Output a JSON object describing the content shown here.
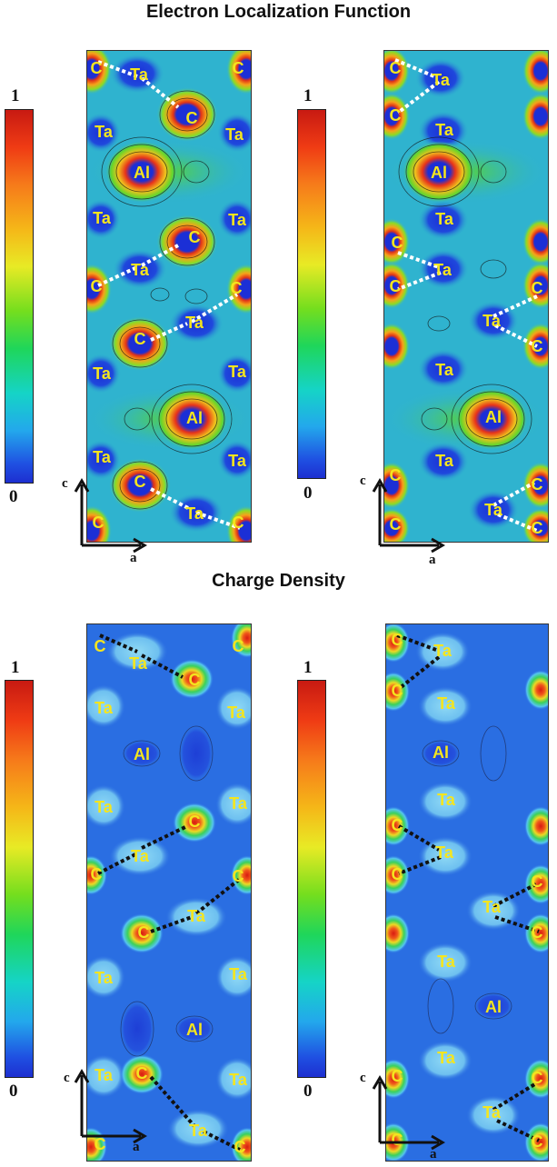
{
  "titles": {
    "elf": "Electron Localization Function",
    "charge": "Charge Density"
  },
  "colorbar": {
    "max": "1",
    "min": "0"
  },
  "axes": {
    "vertical": "c",
    "horizontal": "a"
  },
  "colors": {
    "elf_background": "#2fb3cf",
    "charge_background": "#2a6ee2",
    "atom_label": "#f4e51e",
    "elf_bond": "#ffffff",
    "charge_bond": "#111111"
  },
  "atoms": {
    "ta": "Ta",
    "c": "C",
    "al": "Al"
  },
  "figure": {
    "panels": [
      {
        "id": "elf-left",
        "map": "elf"
      },
      {
        "id": "elf-right",
        "map": "elf"
      },
      {
        "id": "charge-left",
        "map": "charge"
      },
      {
        "id": "charge-right",
        "map": "charge"
      }
    ]
  }
}
